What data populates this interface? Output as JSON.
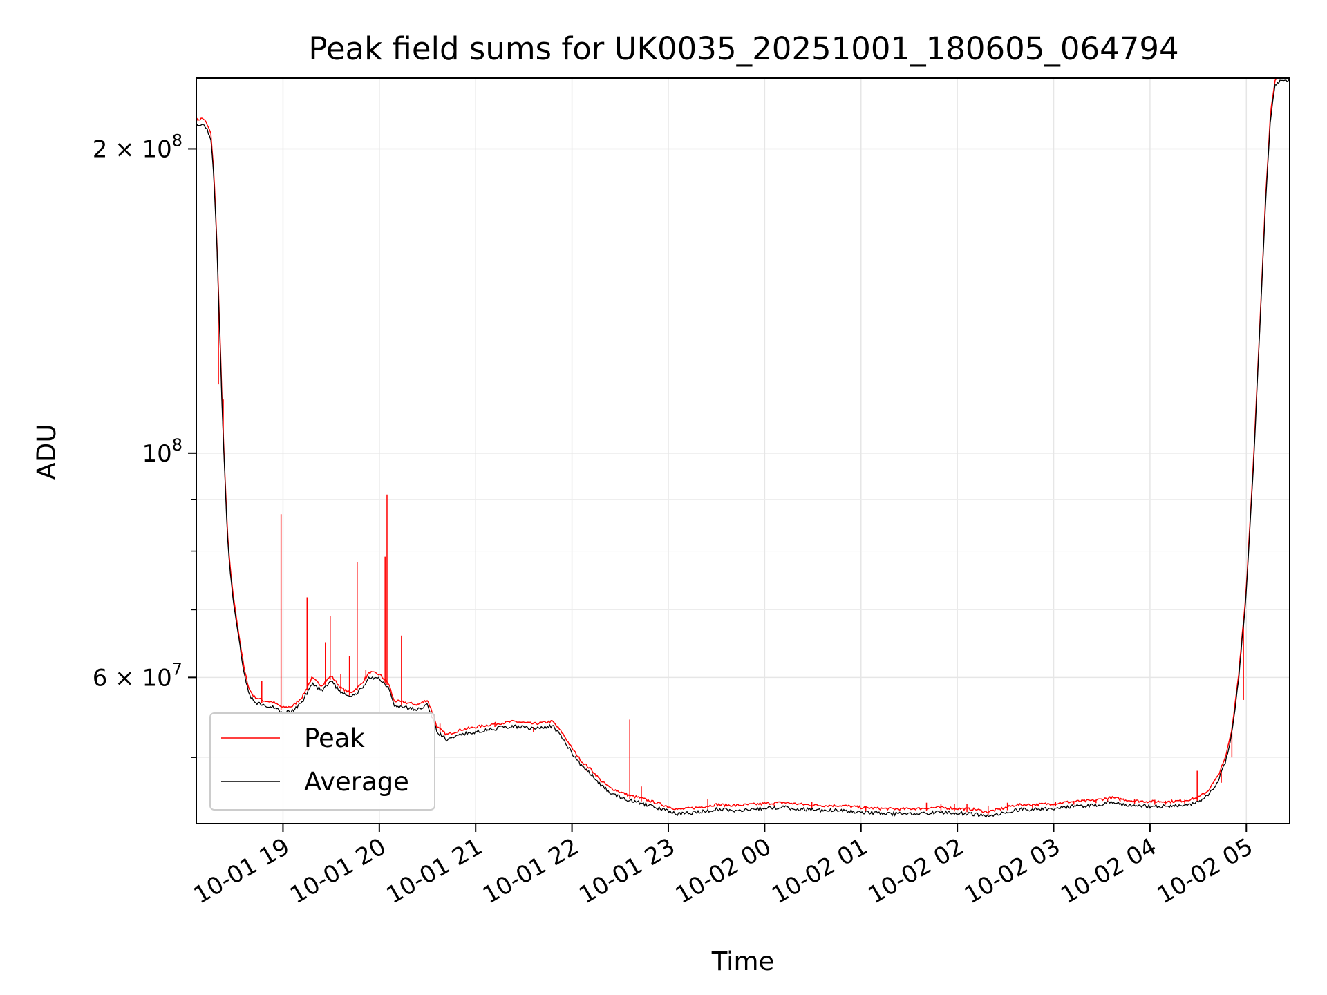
{
  "chart_data": {
    "type": "line",
    "title": "Peak field sums for UK0035_20251001_180605_064794",
    "xlabel": "Time",
    "ylabel": "ADU",
    "yscale": "log",
    "grid": true,
    "legend_position": "lower-left",
    "x_axis_unit": "hours",
    "xlim": [
      18.1,
      29.45
    ],
    "ylim": [
      43000000,
      235000000
    ],
    "x_ticks": [
      {
        "value": 19,
        "label": "10-01 19"
      },
      {
        "value": 20,
        "label": "10-01 20"
      },
      {
        "value": 21,
        "label": "10-01 21"
      },
      {
        "value": 22,
        "label": "10-01 22"
      },
      {
        "value": 23,
        "label": "10-01 23"
      },
      {
        "value": 24,
        "label": "10-02 00"
      },
      {
        "value": 25,
        "label": "10-02 01"
      },
      {
        "value": 26,
        "label": "10-02 02"
      },
      {
        "value": 27,
        "label": "10-02 03"
      },
      {
        "value": 28,
        "label": "10-02 04"
      },
      {
        "value": 29,
        "label": "10-02 05"
      }
    ],
    "y_ticks_major": [
      {
        "value": 200000000,
        "mantissa": "2",
        "exponent": "8"
      },
      {
        "value": 100000000,
        "mantissa": "",
        "exponent": "8"
      },
      {
        "value": 60000000,
        "mantissa": "6",
        "exponent": "7"
      }
    ],
    "y_ticks_minor": [
      50000000,
      70000000,
      80000000,
      90000000
    ],
    "series": [
      {
        "name": "Peak",
        "color": "#ff0000",
        "spikes": [
          [
            18.33,
            117000000
          ],
          [
            18.38,
            113000000
          ],
          [
            18.78,
            59500000
          ],
          [
            18.98,
            87000000
          ],
          [
            19.25,
            72000000
          ],
          [
            19.44,
            65000000
          ],
          [
            19.49,
            69000000
          ],
          [
            19.6,
            60500000
          ],
          [
            19.69,
            63000000
          ],
          [
            19.77,
            78000000
          ],
          [
            19.86,
            61000000
          ],
          [
            20.06,
            79000000
          ],
          [
            20.08,
            91000000
          ],
          [
            20.23,
            66000000
          ],
          [
            20.63,
            54000000
          ],
          [
            21.2,
            54000000
          ],
          [
            21.6,
            53000000
          ],
          [
            22.15,
            48500000
          ],
          [
            22.6,
            54500000
          ],
          [
            22.72,
            46800000
          ],
          [
            23.41,
            45500000
          ],
          [
            24.1,
            44900000
          ],
          [
            24.49,
            45200000
          ],
          [
            25.05,
            44700000
          ],
          [
            25.68,
            45100000
          ],
          [
            25.83,
            45000000
          ],
          [
            25.97,
            45000000
          ],
          [
            26.1,
            45000000
          ],
          [
            26.32,
            44800000
          ],
          [
            26.52,
            45100000
          ],
          [
            26.78,
            45000000
          ],
          [
            27.02,
            45200000
          ],
          [
            27.21,
            45200000
          ],
          [
            27.44,
            45400000
          ],
          [
            27.56,
            45500000
          ],
          [
            27.69,
            45500000
          ],
          [
            27.84,
            45500000
          ],
          [
            28.05,
            45400000
          ],
          [
            28.16,
            45300000
          ],
          [
            28.36,
            45400000
          ],
          [
            28.49,
            48500000
          ],
          [
            28.74,
            47200000
          ],
          [
            28.85,
            50000000
          ],
          [
            28.97,
            57000000
          ],
          [
            29.24,
            208000000
          ]
        ]
      },
      {
        "name": "Average",
        "color": "#000000",
        "points": [
          [
            18.1,
            212000000
          ],
          [
            18.17,
            213000000
          ],
          [
            18.2,
            211000000
          ],
          [
            18.25,
            206000000
          ],
          [
            18.28,
            190000000
          ],
          [
            18.31,
            165000000
          ],
          [
            18.34,
            135000000
          ],
          [
            18.37,
            110000000
          ],
          [
            18.4,
            93000000
          ],
          [
            18.43,
            81000000
          ],
          [
            18.46,
            75000000
          ],
          [
            18.5,
            70000000
          ],
          [
            18.55,
            65000000
          ],
          [
            18.6,
            60500000
          ],
          [
            18.65,
            58000000
          ],
          [
            18.7,
            57000000
          ],
          [
            18.8,
            56500000
          ],
          [
            18.9,
            56300000
          ],
          [
            19.0,
            55600000
          ],
          [
            19.1,
            55800000
          ],
          [
            19.2,
            57000000
          ],
          [
            19.3,
            59500000
          ],
          [
            19.4,
            58500000
          ],
          [
            19.5,
            59800000
          ],
          [
            19.6,
            58200000
          ],
          [
            19.7,
            57500000
          ],
          [
            19.8,
            58500000
          ],
          [
            19.9,
            60300000
          ],
          [
            20.0,
            60000000
          ],
          [
            20.1,
            58700000
          ],
          [
            20.15,
            56500000
          ],
          [
            20.3,
            56200000
          ],
          [
            20.4,
            56000000
          ],
          [
            20.5,
            56600000
          ],
          [
            20.55,
            55000000
          ],
          [
            20.6,
            53200000
          ],
          [
            20.7,
            52300000
          ],
          [
            20.85,
            52900000
          ],
          [
            21.0,
            53200000
          ],
          [
            21.2,
            53600000
          ],
          [
            21.4,
            53900000
          ],
          [
            21.6,
            53600000
          ],
          [
            21.8,
            53900000
          ],
          [
            21.9,
            52500000
          ],
          [
            22.0,
            50700000
          ],
          [
            22.1,
            49200000
          ],
          [
            22.2,
            48300000
          ],
          [
            22.3,
            47100000
          ],
          [
            22.4,
            46300000
          ],
          [
            22.5,
            45900000
          ],
          [
            22.6,
            45500000
          ],
          [
            22.7,
            45300000
          ],
          [
            22.8,
            45000000
          ],
          [
            22.9,
            44700000
          ],
          [
            23.0,
            44400000
          ],
          [
            23.1,
            44100000
          ],
          [
            23.2,
            44200000
          ],
          [
            23.3,
            44300000
          ],
          [
            23.5,
            44600000
          ],
          [
            23.7,
            44500000
          ],
          [
            24.0,
            44700000
          ],
          [
            24.2,
            44800000
          ],
          [
            24.4,
            44600000
          ],
          [
            24.6,
            44500000
          ],
          [
            24.8,
            44500000
          ],
          [
            25.0,
            44300000
          ],
          [
            25.2,
            44200000
          ],
          [
            25.4,
            44150000
          ],
          [
            25.6,
            44200000
          ],
          [
            25.8,
            44300000
          ],
          [
            26.0,
            44200000
          ],
          [
            26.2,
            44100000
          ],
          [
            26.3,
            43850000
          ],
          [
            26.45,
            44150000
          ],
          [
            26.6,
            44550000
          ],
          [
            26.8,
            44600000
          ],
          [
            27.0,
            44700000
          ],
          [
            27.2,
            44900000
          ],
          [
            27.4,
            45000000
          ],
          [
            27.6,
            45300000
          ],
          [
            27.8,
            45000000
          ],
          [
            28.0,
            44900000
          ],
          [
            28.2,
            44900000
          ],
          [
            28.35,
            45000000
          ],
          [
            28.5,
            45300000
          ],
          [
            28.6,
            46000000
          ],
          [
            28.7,
            47500000
          ],
          [
            28.78,
            49500000
          ],
          [
            28.85,
            53000000
          ],
          [
            28.92,
            60000000
          ],
          [
            29.0,
            73000000
          ],
          [
            29.08,
            100000000
          ],
          [
            29.15,
            140000000
          ],
          [
            29.2,
            178000000
          ],
          [
            29.25,
            215000000
          ],
          [
            29.3,
            232000000
          ],
          [
            29.34,
            234000000
          ],
          [
            29.45,
            235000000
          ]
        ]
      }
    ]
  }
}
